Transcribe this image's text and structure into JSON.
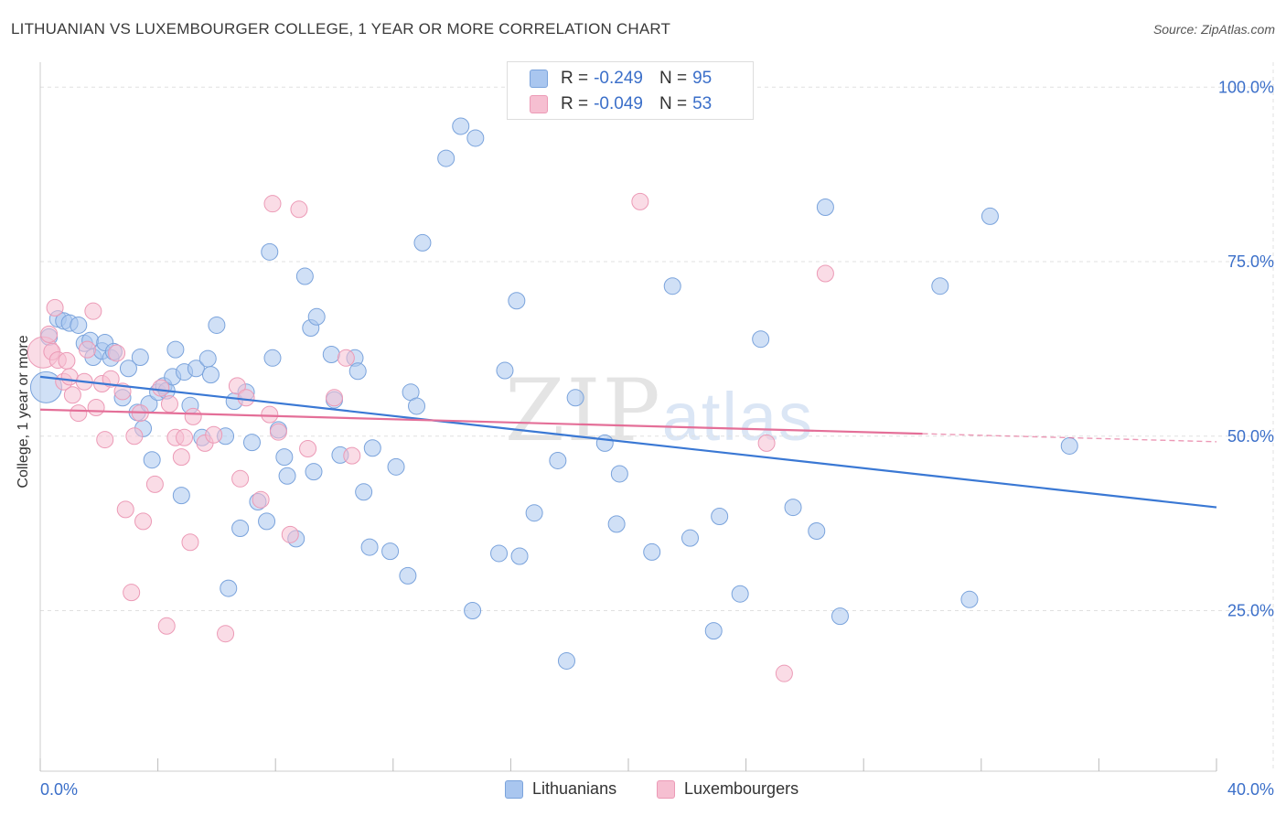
{
  "title": "LITHUANIAN VS LUXEMBOURGER COLLEGE, 1 YEAR OR MORE CORRELATION CHART",
  "source": "Source: ZipAtlas.com",
  "watermark": {
    "zip": "ZIP",
    "atlas": "atlas"
  },
  "legend": {
    "r_label": "R =",
    "n_label": "N =",
    "series1": {
      "r": "-0.249",
      "n": "95"
    },
    "series2": {
      "r": "-0.049",
      "n": "53"
    }
  },
  "bottom_legend": {
    "series1": "Lithuanians",
    "series2": "Luxembourgers"
  },
  "colors": {
    "blue_fill": "#a9c6ef",
    "blue_stroke": "#7aa3dc",
    "blue_line": "#3a78d4",
    "pink_fill": "#f6bfd1",
    "pink_stroke": "#ec9ab6",
    "pink_line": "#e46f98",
    "axis_text": "#3b6fc9",
    "grid": "#e0e0e0"
  },
  "chart_data": {
    "type": "scatter",
    "title": "LITHUANIAN VS LUXEMBOURGER COLLEGE, 1 YEAR OR MORE CORRELATION CHART",
    "xlabel": "",
    "ylabel": "College, 1 year or more",
    "xlim": [
      0,
      40
    ],
    "ylim": [
      2,
      102
    ],
    "x_tick_labels": [
      "0.0%",
      "40.0%"
    ],
    "y_ticks": [
      25,
      50,
      75,
      100
    ],
    "y_tick_labels": [
      "25.0%",
      "50.0%",
      "75.0%",
      "100.0%"
    ],
    "series": [
      {
        "name": "Lithuanians",
        "r": -0.249,
        "n": 95,
        "trend": {
          "x": [
            0,
            40
          ],
          "y": [
            58.5,
            39.8
          ],
          "solid_until": 40
        },
        "points": [
          [
            0.2,
            57.0
          ],
          [
            0.3,
            64.2
          ],
          [
            0.6,
            66.8
          ],
          [
            0.8,
            66.5
          ],
          [
            1.0,
            66.2
          ],
          [
            1.3,
            65.9
          ],
          [
            1.5,
            63.3
          ],
          [
            1.7,
            63.7
          ],
          [
            1.8,
            61.3
          ],
          [
            2.1,
            62.2
          ],
          [
            2.2,
            63.4
          ],
          [
            2.4,
            61.2
          ],
          [
            2.5,
            62.1
          ],
          [
            2.8,
            55.5
          ],
          [
            3.0,
            59.7
          ],
          [
            3.3,
            53.4
          ],
          [
            3.4,
            61.3
          ],
          [
            3.5,
            51.1
          ],
          [
            3.7,
            54.6
          ],
          [
            3.8,
            46.6
          ],
          [
            4.0,
            56.3
          ],
          [
            4.2,
            57.2
          ],
          [
            4.3,
            56.5
          ],
          [
            4.5,
            58.5
          ],
          [
            4.6,
            62.4
          ],
          [
            4.8,
            41.5
          ],
          [
            4.9,
            59.2
          ],
          [
            5.1,
            54.4
          ],
          [
            5.3,
            59.7
          ],
          [
            5.5,
            49.8
          ],
          [
            5.7,
            61.1
          ],
          [
            5.8,
            58.8
          ],
          [
            6.0,
            65.9
          ],
          [
            6.3,
            50.0
          ],
          [
            6.4,
            28.2
          ],
          [
            6.6,
            55.0
          ],
          [
            6.8,
            36.8
          ],
          [
            7.0,
            56.3
          ],
          [
            7.2,
            49.1
          ],
          [
            7.4,
            40.6
          ],
          [
            7.7,
            37.8
          ],
          [
            7.8,
            76.4
          ],
          [
            7.9,
            61.2
          ],
          [
            8.1,
            50.9
          ],
          [
            8.3,
            47.0
          ],
          [
            8.4,
            44.3
          ],
          [
            8.7,
            35.3
          ],
          [
            9.0,
            72.9
          ],
          [
            9.2,
            65.5
          ],
          [
            9.3,
            44.9
          ],
          [
            9.4,
            67.1
          ],
          [
            9.9,
            61.7
          ],
          [
            10.0,
            55.2
          ],
          [
            10.2,
            47.3
          ],
          [
            10.7,
            61.2
          ],
          [
            10.8,
            59.3
          ],
          [
            11.0,
            42.0
          ],
          [
            11.2,
            34.1
          ],
          [
            11.3,
            48.3
          ],
          [
            11.9,
            33.5
          ],
          [
            12.1,
            45.6
          ],
          [
            12.5,
            30.0
          ],
          [
            12.6,
            56.3
          ],
          [
            12.8,
            54.3
          ],
          [
            13.0,
            77.7
          ],
          [
            13.8,
            89.8
          ],
          [
            14.3,
            94.4
          ],
          [
            14.7,
            25.0
          ],
          [
            14.8,
            92.7
          ],
          [
            15.6,
            33.2
          ],
          [
            15.8,
            59.4
          ],
          [
            16.2,
            69.4
          ],
          [
            16.3,
            32.8
          ],
          [
            16.8,
            39.0
          ],
          [
            17.6,
            46.5
          ],
          [
            17.9,
            17.8
          ],
          [
            18.2,
            55.5
          ],
          [
            19.2,
            49.0
          ],
          [
            19.6,
            37.4
          ],
          [
            19.7,
            44.6
          ],
          [
            20.8,
            33.4
          ],
          [
            21.5,
            71.5
          ],
          [
            22.1,
            35.4
          ],
          [
            22.9,
            22.1
          ],
          [
            23.1,
            38.5
          ],
          [
            23.8,
            27.4
          ],
          [
            24.5,
            63.9
          ],
          [
            25.6,
            39.8
          ],
          [
            26.4,
            36.4
          ],
          [
            26.7,
            82.8
          ],
          [
            27.2,
            24.2
          ],
          [
            30.6,
            71.5
          ],
          [
            31.6,
            26.6
          ],
          [
            32.3,
            81.5
          ],
          [
            35.0,
            48.6
          ]
        ]
      },
      {
        "name": "Luxembourgers",
        "r": -0.049,
        "n": 53,
        "trend": {
          "x": [
            0,
            40
          ],
          "y": [
            53.8,
            49.2
          ],
          "solid_until": 30
        },
        "points": [
          [
            0.1,
            62.0
          ],
          [
            0.3,
            64.6
          ],
          [
            0.4,
            62.1
          ],
          [
            0.5,
            68.4
          ],
          [
            0.6,
            60.9
          ],
          [
            0.8,
            57.8
          ],
          [
            0.9,
            60.8
          ],
          [
            1.0,
            58.5
          ],
          [
            1.1,
            55.9
          ],
          [
            1.3,
            53.3
          ],
          [
            1.5,
            57.8
          ],
          [
            1.6,
            62.4
          ],
          [
            1.8,
            67.9
          ],
          [
            1.9,
            54.1
          ],
          [
            2.1,
            57.5
          ],
          [
            2.2,
            49.5
          ],
          [
            2.4,
            58.2
          ],
          [
            2.6,
            61.9
          ],
          [
            2.8,
            56.4
          ],
          [
            2.9,
            39.5
          ],
          [
            3.1,
            27.6
          ],
          [
            3.2,
            50.0
          ],
          [
            3.4,
            53.3
          ],
          [
            3.5,
            37.8
          ],
          [
            3.9,
            43.1
          ],
          [
            4.1,
            56.9
          ],
          [
            4.3,
            22.8
          ],
          [
            4.4,
            54.6
          ],
          [
            4.6,
            49.8
          ],
          [
            4.8,
            47.0
          ],
          [
            4.9,
            49.8
          ],
          [
            5.1,
            34.8
          ],
          [
            5.2,
            52.8
          ],
          [
            5.6,
            49.0
          ],
          [
            5.9,
            50.2
          ],
          [
            6.3,
            21.7
          ],
          [
            6.7,
            57.2
          ],
          [
            6.8,
            43.9
          ],
          [
            7.0,
            55.5
          ],
          [
            7.5,
            40.9
          ],
          [
            7.8,
            53.1
          ],
          [
            7.9,
            83.3
          ],
          [
            8.1,
            50.6
          ],
          [
            8.5,
            35.9
          ],
          [
            8.8,
            82.5
          ],
          [
            9.1,
            48.2
          ],
          [
            10.0,
            55.5
          ],
          [
            10.4,
            61.2
          ],
          [
            10.6,
            47.2
          ],
          [
            20.4,
            83.6
          ],
          [
            24.7,
            49.0
          ],
          [
            25.3,
            16.0
          ],
          [
            26.7,
            73.3
          ]
        ]
      }
    ]
  }
}
